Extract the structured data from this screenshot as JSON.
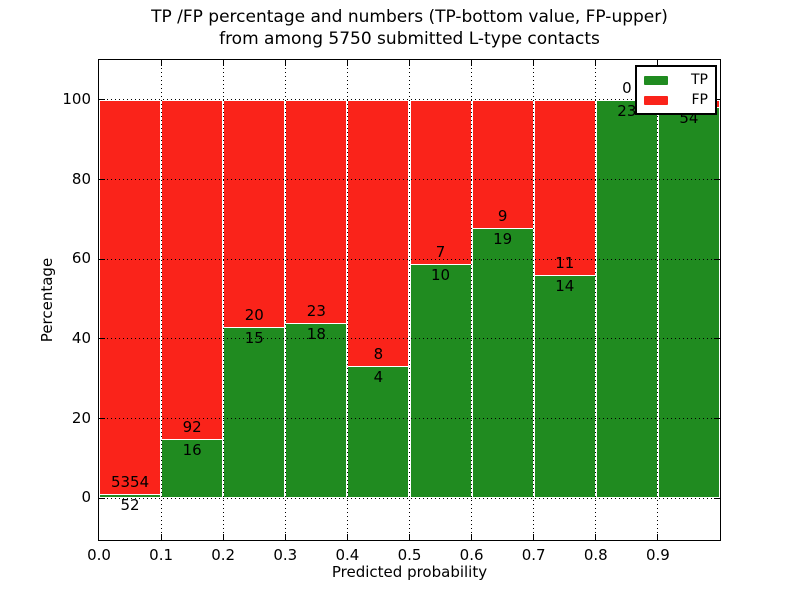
{
  "chart_data": {
    "type": "bar",
    "stacked": true,
    "title_line1": "TP /FP percentage and numbers (TP-bottom value, FP-upper)",
    "title_line2": "from among 5750 submitted L-type contacts",
    "xlabel": "Predicted probability",
    "ylabel": "Percentage",
    "x_tick_labels": [
      "0.0",
      "0.1",
      "0.2",
      "0.3",
      "0.4",
      "0.5",
      "0.6",
      "0.7",
      "0.8",
      "0.9"
    ],
    "x_tick_values": [
      0.0,
      0.1,
      0.2,
      0.3,
      0.4,
      0.5,
      0.6,
      0.7,
      0.8,
      0.9
    ],
    "y_tick_values": [
      0,
      20,
      40,
      60,
      80,
      100
    ],
    "xlim": [
      0.0,
      1.0
    ],
    "ylim": [
      -10.5,
      110.0
    ],
    "grid": true,
    "legend": {
      "position": "upper-right",
      "entries": [
        {
          "label": "TP",
          "color": "#208b20"
        },
        {
          "label": "FP",
          "color": "#fa231a"
        }
      ]
    },
    "colors": {
      "tp": "#208b20",
      "fp": "#fa231a",
      "bar_edge": "#ffffff",
      "grid": "#000000",
      "frame": "#000000",
      "background": "#ffffff"
    },
    "bins": [
      {
        "range": "0.0-0.1",
        "tp": 52,
        "fp": 5354,
        "tp_pct": 0.96,
        "tp_label": "52",
        "fp_label": "5354"
      },
      {
        "range": "0.1-0.2",
        "tp": 16,
        "fp": 92,
        "tp_pct": 14.8,
        "tp_label": "16",
        "fp_label": "92"
      },
      {
        "range": "0.2-0.3",
        "tp": 15,
        "fp": 20,
        "tp_pct": 42.9,
        "tp_label": "15",
        "fp_label": "20"
      },
      {
        "range": "0.3-0.4",
        "tp": 18,
        "fp": 23,
        "tp_pct": 43.9,
        "tp_label": "18",
        "fp_label": "23"
      },
      {
        "range": "0.4-0.5",
        "tp": 4,
        "fp": 8,
        "tp_pct": 33.3,
        "tp_label": "4",
        "fp_label": "8"
      },
      {
        "range": "0.5-0.6",
        "tp": 10,
        "fp": 7,
        "tp_pct": 58.8,
        "tp_label": "10",
        "fp_label": "7"
      },
      {
        "range": "0.6-0.7",
        "tp": 19,
        "fp": 9,
        "tp_pct": 67.9,
        "tp_label": "19",
        "fp_label": "9"
      },
      {
        "range": "0.7-0.8",
        "tp": 14,
        "fp": 11,
        "tp_pct": 56.0,
        "tp_label": "14",
        "fp_label": "11"
      },
      {
        "range": "0.8-0.9",
        "tp": 23,
        "fp": 0,
        "tp_pct": 100.0,
        "tp_label": "23",
        "fp_label": "0"
      },
      {
        "range": "0.9-1.0",
        "tp": 54,
        "fp": null,
        "tp_pct": 98.2,
        "tp_label": "54",
        "fp_label": null
      }
    ]
  }
}
